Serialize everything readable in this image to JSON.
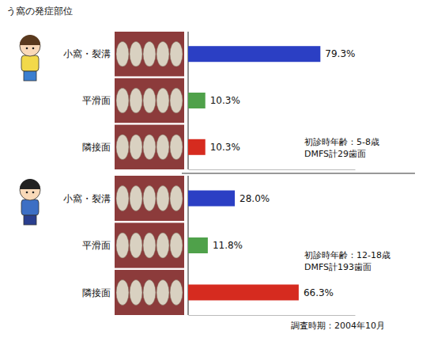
{
  "chart_data": [
    {
      "type": "bar",
      "title": "う窩の発症部位",
      "orientation": "horizontal",
      "categories": [
        "小窩・裂溝",
        "平滑面",
        "隣接面"
      ],
      "values": [
        79.3,
        10.3,
        10.3
      ],
      "value_labels": [
        "79.3%",
        "10.3%",
        "10.3%"
      ],
      "colors": [
        "#2b3fc4",
        "#4fa14a",
        "#d62b1f"
      ],
      "xlim": [
        0,
        100
      ],
      "tick_labels": false,
      "data_labels": true,
      "annotations": [
        "初診時年齢：5-8歳",
        "DMFS計29歯面"
      ]
    },
    {
      "type": "bar",
      "orientation": "horizontal",
      "categories": [
        "小窩・裂溝",
        "平滑面",
        "隣接面"
      ],
      "values": [
        28.0,
        11.8,
        66.3
      ],
      "value_labels": [
        "28.0%",
        "11.8%",
        "66.3%"
      ],
      "colors": [
        "#2b3fc4",
        "#4fa14a",
        "#d62b1f"
      ],
      "xlim": [
        0,
        100
      ],
      "tick_labels": false,
      "data_labels": true,
      "annotations": [
        "初診時年齢：12-18歳",
        "DMFS計193歯面",
        "調査時期：2004年10月"
      ]
    }
  ]
}
